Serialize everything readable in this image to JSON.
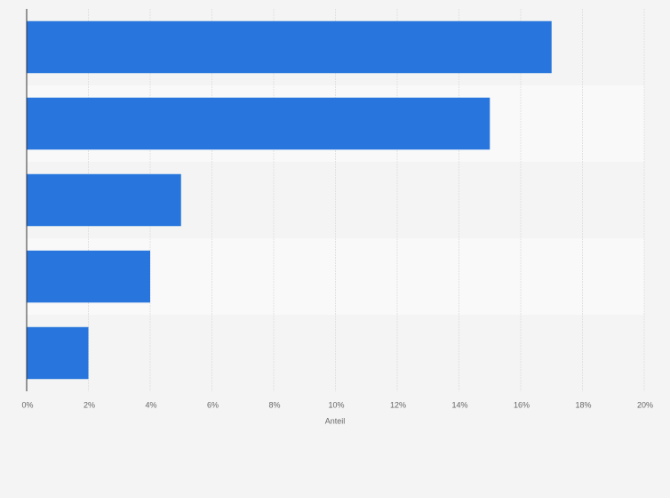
{
  "chart_data": {
    "type": "bar",
    "orientation": "horizontal",
    "categories": [
      null,
      null,
      null,
      null,
      null
    ],
    "values": [
      17,
      15,
      5,
      4,
      2
    ],
    "color": "#2876dd",
    "xlabel": "Anteil",
    "xlim": [
      0,
      20
    ],
    "xticks": [
      {
        "value": 0,
        "label": "0%"
      },
      {
        "value": 2,
        "label": "2%"
      },
      {
        "value": 4,
        "label": "4%"
      },
      {
        "value": 6,
        "label": "6%"
      },
      {
        "value": 8,
        "label": "8%"
      },
      {
        "value": 10,
        "label": "10%"
      },
      {
        "value": 12,
        "label": "12%"
      },
      {
        "value": 14,
        "label": "14%"
      },
      {
        "value": 16,
        "label": "16%"
      },
      {
        "value": 18,
        "label": "18%"
      },
      {
        "value": 20,
        "label": "20%"
      }
    ],
    "grid": true
  }
}
